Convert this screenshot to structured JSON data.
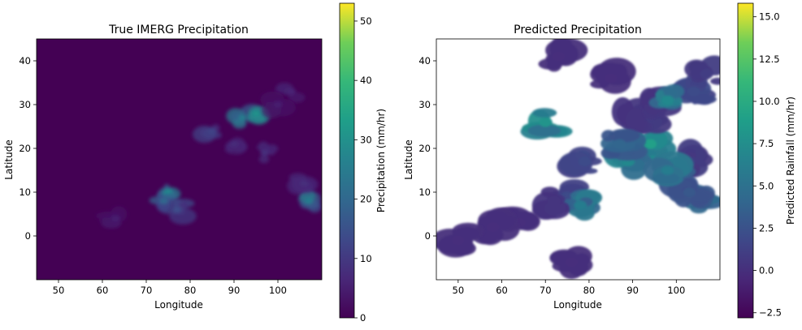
{
  "chart_data": [
    {
      "type": "heatmap",
      "title": "True IMERG Precipitation",
      "xlabel": "Longitude",
      "ylabel": "Latitude",
      "xlim": [
        45,
        110
      ],
      "ylim": [
        -10,
        45
      ],
      "xticks": [
        "50",
        "60",
        "70",
        "80",
        "90",
        "100"
      ],
      "yticks": [
        "0",
        "10",
        "20",
        "30",
        "40"
      ],
      "colormap": "viridis",
      "colorbar": {
        "label": "Precipitation (mm/hr)",
        "range": [
          0,
          53
        ],
        "ticks": [
          "0",
          "10",
          "20",
          "30",
          "40",
          "50"
        ]
      },
      "blobs": [
        {
          "lon": 95,
          "lat": 28,
          "value": 30
        },
        {
          "lon": 92,
          "lat": 27,
          "value": 25
        },
        {
          "lon": 75,
          "lat": 10,
          "value": 28
        },
        {
          "lon": 74,
          "lat": 8,
          "value": 20
        },
        {
          "lon": 77,
          "lat": 6,
          "value": 14
        },
        {
          "lon": 107,
          "lat": 8,
          "value": 25
        },
        {
          "lon": 85,
          "lat": 24,
          "value": 12
        },
        {
          "lon": 97,
          "lat": 19,
          "value": 8
        },
        {
          "lon": 103,
          "lat": 33,
          "value": 6
        },
        {
          "lon": 90,
          "lat": 21,
          "value": 7
        },
        {
          "lon": 63,
          "lat": 4,
          "value": 5
        },
        {
          "lon": 106,
          "lat": 12,
          "value": 8
        },
        {
          "lon": 100,
          "lat": 30,
          "value": 5
        }
      ]
    },
    {
      "type": "heatmap",
      "title": "Predicted Precipitation",
      "xlabel": "Longitude",
      "ylabel": "Latitude",
      "xlim": [
        45,
        110
      ],
      "ylim": [
        -10,
        45
      ],
      "xticks": [
        "50",
        "60",
        "70",
        "80",
        "90",
        "100"
      ],
      "yticks": [
        "0",
        "10",
        "20",
        "30",
        "40"
      ],
      "colormap": "viridis",
      "colorbar": {
        "label": "Predicted Rainfall (mm/hr)",
        "range": [
          -2.8,
          15.8
        ],
        "ticks": [
          "−2.5",
          "0.0",
          "2.5",
          "5.0",
          "7.5",
          "10.0",
          "12.5",
          "15.0"
        ]
      },
      "blobs": [
        {
          "lon": 91,
          "lat": 20,
          "value": 10
        },
        {
          "lon": 94,
          "lat": 21,
          "value": 9
        },
        {
          "lon": 89,
          "lat": 17,
          "value": 7
        },
        {
          "lon": 93,
          "lat": 27,
          "value": 1
        },
        {
          "lon": 90,
          "lat": 27,
          "value": 0.5
        },
        {
          "lon": 96,
          "lat": 30,
          "value": 0.5
        },
        {
          "lon": 104,
          "lat": 33,
          "value": 2
        },
        {
          "lon": 107,
          "lat": 37,
          "value": 1
        },
        {
          "lon": 103,
          "lat": 17,
          "value": 1
        },
        {
          "lon": 106,
          "lat": 8,
          "value": 5
        },
        {
          "lon": 103,
          "lat": 10,
          "value": 3
        },
        {
          "lon": 75,
          "lat": 9,
          "value": 2
        },
        {
          "lon": 78,
          "lat": 7,
          "value": 6
        },
        {
          "lon": 72,
          "lat": 8,
          "value": 0.5
        },
        {
          "lon": 64,
          "lat": 3,
          "value": 0
        },
        {
          "lon": 58,
          "lat": 2,
          "value": 0
        },
        {
          "lon": 50,
          "lat": -1,
          "value": 0
        },
        {
          "lon": 79,
          "lat": 17,
          "value": 2
        },
        {
          "lon": 87,
          "lat": 21,
          "value": 4
        },
        {
          "lon": 98,
          "lat": 31,
          "value": 7
        },
        {
          "lon": 85,
          "lat": 36,
          "value": 0
        },
        {
          "lon": 73,
          "lat": 41,
          "value": 0
        },
        {
          "lon": 76,
          "lat": -6,
          "value": 0
        },
        {
          "lon": 98,
          "lat": 15,
          "value": 6
        },
        {
          "lon": 70,
          "lat": 26,
          "value": 8
        }
      ]
    }
  ]
}
